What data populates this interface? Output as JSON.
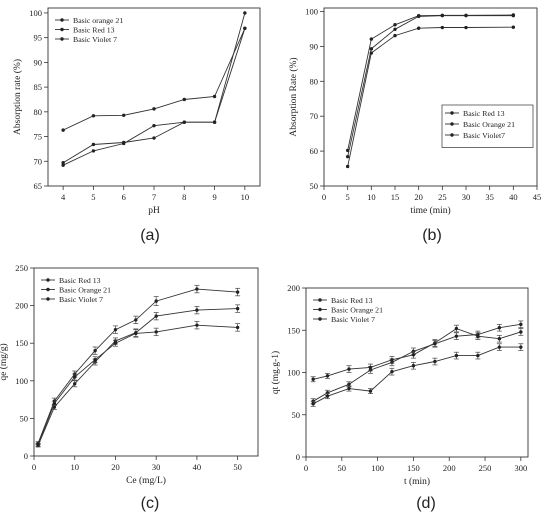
{
  "chart_data": [
    {
      "id": "a",
      "panel_label": "(a)",
      "type": "line",
      "xlabel": "pH",
      "ylabel": "Absorption rate (%)",
      "xlim": [
        3.5,
        10.5
      ],
      "ylim": [
        65,
        101
      ],
      "xticks": [
        4,
        5,
        6,
        7,
        8,
        9,
        10
      ],
      "yticks": [
        65,
        70,
        75,
        80,
        85,
        90,
        95,
        100
      ],
      "legend_position": "top-left",
      "grid": false,
      "series": [
        {
          "name": "Basic orange 21",
          "x": [
            4,
            5,
            6,
            7,
            8,
            9,
            10
          ],
          "y": [
            69.2,
            72.1,
            73.6,
            77.2,
            77.9,
            77.9,
            100.0
          ]
        },
        {
          "name": "Basic Red 13",
          "x": [
            4,
            5,
            6,
            7,
            8,
            9,
            10
          ],
          "y": [
            76.3,
            79.2,
            79.3,
            80.6,
            82.5,
            83.1,
            96.9
          ]
        },
        {
          "name": "Basic Violet 7",
          "x": [
            4,
            5,
            6,
            7,
            8,
            9,
            10
          ],
          "y": [
            69.7,
            73.4,
            73.8,
            74.7,
            77.9,
            77.9,
            96.9
          ]
        }
      ]
    },
    {
      "id": "b",
      "panel_label": "(b)",
      "type": "line",
      "xlabel": "time (min)",
      "ylabel": "Absorption Rate (%)",
      "xlim": [
        0,
        45
      ],
      "ylim": [
        50,
        101
      ],
      "xticks": [
        0,
        5,
        10,
        15,
        20,
        25,
        30,
        35,
        40,
        45
      ],
      "yticks": [
        50,
        60,
        70,
        80,
        90,
        100
      ],
      "legend_position": "bottom-right",
      "grid": false,
      "series": [
        {
          "name": "Basic Red 13",
          "x": [
            5,
            10,
            15,
            20,
            25,
            30,
            40
          ],
          "y": [
            60.2,
            92.1,
            96.2,
            98.8,
            98.9,
            98.9,
            99.0
          ]
        },
        {
          "name": "Basic Orange 21",
          "x": [
            5,
            10,
            15,
            20,
            25,
            30,
            40
          ],
          "y": [
            58.4,
            89.3,
            94.9,
            98.6,
            98.8,
            98.8,
            98.8
          ]
        },
        {
          "name": "Basic Violet7",
          "x": [
            5,
            10,
            15,
            20,
            25,
            30,
            40
          ],
          "y": [
            55.6,
            88.1,
            93.1,
            95.2,
            95.4,
            95.4,
            95.5
          ]
        }
      ]
    },
    {
      "id": "c",
      "panel_label": "(c)",
      "type": "line",
      "xlabel": "Ce (mg/L)",
      "ylabel": "qe (mg/g)",
      "xlim": [
        0,
        55
      ],
      "ylim": [
        0,
        250
      ],
      "xticks": [
        0,
        10,
        20,
        30,
        40,
        50
      ],
      "yticks": [
        0,
        50,
        100,
        150,
        200,
        250
      ],
      "legend_position": "top-left",
      "grid": false,
      "error_bars": true,
      "series": [
        {
          "name": "Basic Red 13",
          "x": [
            1,
            5,
            10,
            15,
            20,
            25,
            30,
            40,
            50
          ],
          "y": [
            17,
            73,
            109,
            140,
            168,
            181,
            206,
            222,
            218
          ],
          "err": [
            2,
            4,
            4,
            5,
            5,
            5,
            6,
            5,
            5
          ]
        },
        {
          "name": "Basic Orange 21",
          "x": [
            1,
            5,
            10,
            15,
            20,
            25,
            30,
            40,
            50
          ],
          "y": [
            14,
            65,
            96,
            125,
            153,
            164,
            186,
            194,
            196
          ],
          "err": [
            2,
            3,
            4,
            4,
            4,
            5,
            5,
            5,
            5
          ]
        },
        {
          "name": "Basic Violet 7",
          "x": [
            1,
            5,
            10,
            15,
            20,
            25,
            30,
            40,
            50
          ],
          "y": [
            15,
            70,
            105,
            128,
            150,
            163,
            165,
            174,
            171
          ],
          "err": [
            2,
            3,
            4,
            4,
            4,
            5,
            5,
            5,
            5
          ]
        }
      ]
    },
    {
      "id": "d",
      "panel_label": "(d)",
      "type": "line",
      "xlabel": "t (min)",
      "ylabel": "qt (mg.g-1)",
      "xlim": [
        0,
        310
      ],
      "ylim": [
        0,
        200
      ],
      "xticks": [
        0,
        50,
        100,
        150,
        200,
        250,
        300
      ],
      "yticks": [
        0,
        50,
        100,
        150,
        200
      ],
      "legend_position": "top-left",
      "grid": false,
      "error_bars": true,
      "series": [
        {
          "name": "Basic Red 13",
          "x": [
            10,
            30,
            60,
            90,
            120,
            150,
            180,
            210,
            240,
            270,
            300
          ],
          "y": [
            66,
            76,
            86,
            103,
            112,
            125,
            134,
            143,
            145,
            153,
            157
          ],
          "err": [
            3,
            3,
            3,
            4,
            4,
            4,
            4,
            4,
            4,
            4,
            4
          ]
        },
        {
          "name": "Basic Orange 21",
          "x": [
            10,
            30,
            60,
            90,
            120,
            150,
            180,
            210,
            240,
            270,
            300
          ],
          "y": [
            63,
            72,
            81,
            78,
            101,
            108,
            113,
            120,
            120,
            130,
            130
          ],
          "err": [
            3,
            3,
            3,
            3,
            4,
            4,
            4,
            4,
            4,
            4,
            4
          ]
        },
        {
          "name": "Basic Violet 7",
          "x": [
            10,
            30,
            60,
            90,
            120,
            150,
            180,
            210,
            240,
            270,
            300
          ],
          "y": [
            92,
            96,
            104,
            106,
            115,
            121,
            135,
            152,
            143,
            140,
            148
          ],
          "err": [
            3,
            3,
            4,
            4,
            4,
            4,
            4,
            4,
            4,
            4,
            4
          ]
        }
      ]
    }
  ]
}
